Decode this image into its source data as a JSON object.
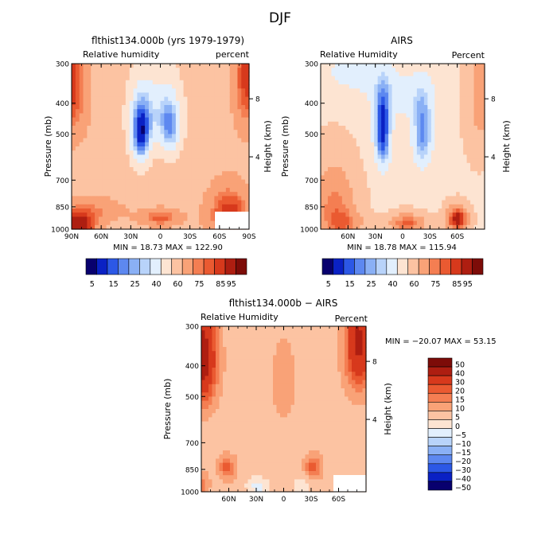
{
  "page": {
    "title": "DJF"
  },
  "palettes": {
    "full": [
      "#08006e",
      "#0a21c4",
      "#2c58e6",
      "#5d88f0",
      "#8ab0f5",
      "#b8d3fa",
      "#e2effd",
      "#fde4d2",
      "#fcc3a2",
      "#f9a277",
      "#f47e52",
      "#ea5a31",
      "#d7391c",
      "#ae1e11",
      "#7d0c08"
    ],
    "diff": [
      "#08006e",
      "#0a21c4",
      "#2c58e6",
      "#5d88f0",
      "#8ab0f5",
      "#b8d3fa",
      "#e2effd",
      "#fde4d2",
      "#fcc3a2",
      "#f9a277",
      "#f47e52",
      "#ea5a31",
      "#d7391c",
      "#ae1e11",
      "#7d0c08"
    ]
  },
  "colorbar_full": {
    "labels": [
      "5",
      "15",
      "25",
      "40",
      "60",
      "75",
      "85",
      "95"
    ],
    "label_index": [
      1,
      3,
      5,
      7,
      9,
      11,
      13,
      14
    ]
  },
  "colorbar_diff": {
    "labels": [
      "50",
      "40",
      "30",
      "20",
      "15",
      "10",
      "5",
      "0",
      "−5",
      "−10",
      "−15",
      "−20",
      "−30",
      "−40",
      "−50"
    ]
  },
  "chart_data": [
    {
      "type": "heatmap",
      "title": "flthist134.000b (yrs 1979-1979)",
      "left_label": "Relative humidity",
      "right_label": "percent",
      "ylabel": "Pressure (mb)",
      "ylabel_right": "Height (km)",
      "x_ticks": [
        "90N",
        "60N",
        "30N",
        "0",
        "30S",
        "60S",
        "90S"
      ],
      "x_range": [
        90,
        -90
      ],
      "y_ticks": [
        "300",
        "400",
        "500",
        "700",
        "850",
        "1000"
      ],
      "y_tick_values": [
        300,
        400,
        500,
        700,
        850,
        1000
      ],
      "y_range": [
        300,
        1000
      ],
      "y_scale": "log",
      "right_ticks": [
        "8",
        "4"
      ],
      "stats": "MIN =   18.73   MAX =  122.90",
      "min": 18.73,
      "max": 122.9,
      "field": "model"
    },
    {
      "type": "heatmap",
      "title": "AIRS",
      "left_label": "Relative Humidity",
      "right_label": "Percent",
      "ylabel": "Pressure (mb)",
      "ylabel_right": "Height (km)",
      "x_ticks": [
        "60N",
        "30N",
        "0",
        "30S",
        "60S"
      ],
      "x_range": [
        90,
        -90
      ],
      "y_ticks": [
        "300",
        "400",
        "500",
        "700",
        "850",
        "1000"
      ],
      "y_tick_values": [
        300,
        400,
        500,
        700,
        850,
        1000
      ],
      "y_range": [
        300,
        1000
      ],
      "y_scale": "log",
      "right_ticks": [
        "8",
        "4"
      ],
      "stats": "MIN =   18.78   MAX =  115.94",
      "min": 18.78,
      "max": 115.94,
      "field": "airs"
    },
    {
      "type": "heatmap",
      "title": "flthist134.000b − AIRS",
      "left_label": "Relative Humidity",
      "right_label": "Percent",
      "ylabel": "Pressure (mb)",
      "ylabel_right": "Height (km)",
      "x_ticks": [
        "60N",
        "30N",
        "0",
        "30S",
        "60S"
      ],
      "x_range": [
        90,
        -90
      ],
      "y_ticks": [
        "300",
        "400",
        "500",
        "700",
        "850",
        "1000"
      ],
      "y_tick_values": [
        300,
        400,
        500,
        700,
        850,
        1000
      ],
      "y_range": [
        300,
        1000
      ],
      "y_scale": "log",
      "right_ticks": [
        "8",
        "4"
      ],
      "stats": "MIN = −20.07   MAX =   53.15",
      "min": -20.07,
      "max": 53.15,
      "field": "diff"
    }
  ]
}
